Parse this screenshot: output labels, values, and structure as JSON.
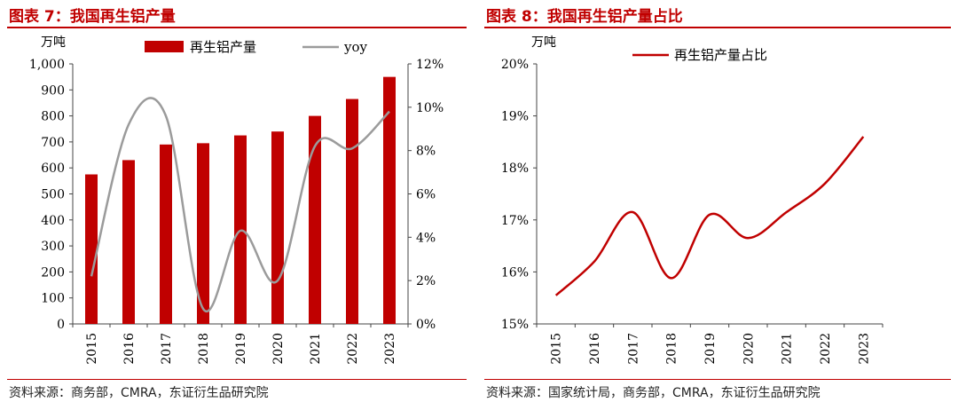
{
  "left": {
    "title": "图表 7：我国再生铝产量",
    "source": "资料来源：商务部，CMRA，东证衍生品研究院",
    "chart_data": {
      "type": "bar",
      "categories": [
        "2015",
        "2016",
        "2017",
        "2018",
        "2019",
        "2020",
        "2021",
        "2022",
        "2023"
      ],
      "series": [
        {
          "name": "再生铝产量",
          "type": "bar",
          "axis": "left",
          "values": [
            575,
            630,
            690,
            695,
            725,
            740,
            800,
            865,
            950
          ]
        },
        {
          "name": "yoy",
          "type": "line",
          "axis": "right",
          "values": [
            2.2,
            9.2,
            9.6,
            0.7,
            4.3,
            2.0,
            8.2,
            8.1,
            9.8
          ]
        }
      ],
      "ylabel": "万吨",
      "ylim": [
        0,
        1000
      ],
      "yticks": [
        "0",
        "100",
        "200",
        "300",
        "400",
        "500",
        "600",
        "700",
        "800",
        "900",
        "1,000"
      ],
      "y2lim": [
        0,
        12
      ],
      "y2ticks": [
        "0%",
        "2%",
        "4%",
        "6%",
        "8%",
        "10%",
        "12%"
      ],
      "legend": "top",
      "colors": {
        "bar": "#c00000",
        "line": "#9b9b9b"
      }
    }
  },
  "right": {
    "title": "图表 8：我国再生铝产量占比",
    "source": "资料来源：国家统计局，商务部，CMRA，东证衍生品研究院",
    "chart_data": {
      "type": "line",
      "categories": [
        "2015",
        "2016",
        "2017",
        "2018",
        "2019",
        "2020",
        "2021",
        "2022",
        "2023"
      ],
      "series": [
        {
          "name": "再生铝产量占比",
          "values": [
            15.55,
            16.2,
            17.15,
            15.88,
            17.1,
            16.65,
            17.15,
            17.7,
            18.6
          ]
        }
      ],
      "ylabel": "万吨",
      "ylim": [
        15,
        20
      ],
      "yticks": [
        "15%",
        "16%",
        "17%",
        "18%",
        "19%",
        "20%"
      ],
      "legend": "top",
      "colors": {
        "line": "#c00000"
      }
    }
  }
}
